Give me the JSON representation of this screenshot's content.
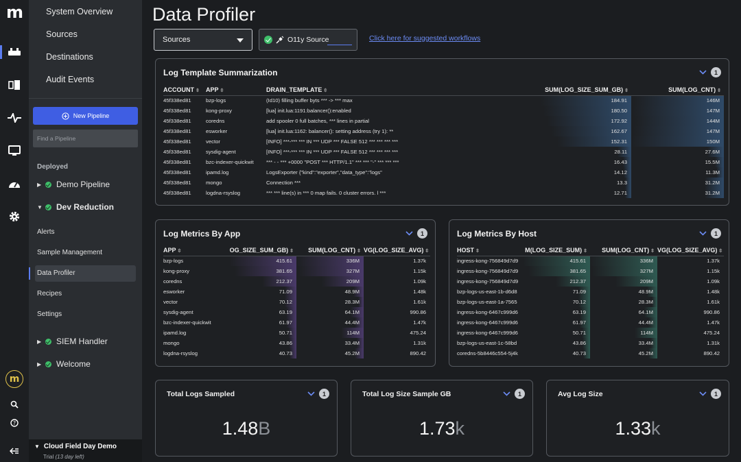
{
  "nav": {
    "top_items": [
      "System Overview",
      "Sources",
      "Destinations",
      "Audit Events"
    ],
    "new_pipeline": "New Pipeline",
    "find_placeholder": "Find a Pipeline",
    "deployed_label": "Deployed",
    "pipelines": [
      {
        "name": "Demo Pipeline",
        "expanded": false
      },
      {
        "name": "Dev Reduction",
        "expanded": true
      },
      {
        "name": "SIEM Handler",
        "expanded": false
      },
      {
        "name": "Welcome",
        "expanded": false
      }
    ],
    "sub_items": [
      "Alerts",
      "Sample Management",
      "Data Profiler",
      "Recipes",
      "Settings"
    ],
    "active_sub": "Data Profiler",
    "org_name": "Cloud Field Day Demo",
    "trial_prefix": "Trial",
    "trial_days": "(13 day left)"
  },
  "main": {
    "title": "Data Profiler",
    "select_value": "Sources",
    "source_chip": "O11y Source",
    "workflow_link": "Click here for suggested workflows"
  },
  "log_template": {
    "title": "Log Template Summarization",
    "badge": "1",
    "columns": [
      "ACCOUNT",
      "APP",
      "DRAIN_TEMPLATE",
      "SUM(LOG_SIZE_SUM_GB)",
      "SUM(LOG_CNT)"
    ],
    "rows": [
      {
        "account": "45f338ed81",
        "app": "bzp-logs",
        "template": "(Id10) filling buffer byts *** -> *** max",
        "size": "184.91",
        "cnt": "146M",
        "size_frac": 1.0,
        "cnt_frac": 0.97
      },
      {
        "account": "45f338ed81",
        "app": "kong-proxy",
        "template": "[lua] init.lua:1191:balancer():enabled",
        "size": "180.50",
        "cnt": "147M",
        "size_frac": 0.97,
        "cnt_frac": 0.98
      },
      {
        "account": "45f338ed81",
        "app": "coredns",
        "template": "add spooler 0 full batches, *** lines in partial",
        "size": "172.92",
        "cnt": "144M",
        "size_frac": 0.93,
        "cnt_frac": 0.96
      },
      {
        "account": "45f338ed81",
        "app": "esworker",
        "template": "[lua] init.lua:1162: balancer(): setting address (try 1): **",
        "size": "162.67",
        "cnt": "147M",
        "size_frac": 0.88,
        "cnt_frac": 0.98
      },
      {
        "account": "45f338ed81",
        "app": "vector",
        "template": "[INFO] ***-*** *** IN *** UDP *** FALSE 512 *** *** *** ***",
        "size": "152.31",
        "cnt": "150M",
        "size_frac": 0.82,
        "cnt_frac": 1.0
      },
      {
        "account": "45f338ed81",
        "app": "sysdig-agent",
        "template": "[INFO] ***-*** *** IN *** UDP *** FALSE 512 *** *** *** ***",
        "size": "28.11",
        "cnt": "27.6M",
        "size_frac": 0.15,
        "cnt_frac": 0.18
      },
      {
        "account": "45f338ed81",
        "app": "bzc-indexer-quickwit",
        "template": "*** - - *** +0000 \"POST *** HTTP/1.1\" *** *** \"-\" *** *** ***",
        "size": "16.43",
        "cnt": "15.5M",
        "size_frac": 0.09,
        "cnt_frac": 0.1
      },
      {
        "account": "45f338ed81",
        "app": "ipamd.log",
        "template": "LogsExporter {\"kind\":\"exporter\",\"data_type\":\"logs\"",
        "size": "14.12",
        "cnt": "11.3M",
        "size_frac": 0.08,
        "cnt_frac": 0.08
      },
      {
        "account": "45f338ed81",
        "app": "mongo",
        "template": "Connection ***",
        "size": "13.3",
        "cnt": "31.2M",
        "size_frac": 0.07,
        "cnt_frac": 0.21
      },
      {
        "account": "45f338ed81",
        "app": "logdna-rsyslog",
        "template": "*** *** line(s) in *** 0 map fails. 0 cluster errors. l ***",
        "size": "12.71",
        "cnt": "31.2M",
        "size_frac": 0.07,
        "cnt_frac": 0.21
      }
    ]
  },
  "metrics_app": {
    "title": "Log Metrics By App",
    "badge": "1",
    "columns": [
      "APP",
      "OG_SIZE_SUM_GB)",
      "SUM(LOG_CNT)",
      "VG(LOG_SIZE_AVG)"
    ],
    "rows": [
      {
        "name": "bzp-logs",
        "size": "415.61",
        "cnt": "336M",
        "avg": "1.37k",
        "size_frac": 1.0,
        "cnt_frac": 1.0
      },
      {
        "name": "kong-proxy",
        "size": "381.65",
        "cnt": "327M",
        "avg": "1.15k",
        "size_frac": 0.92,
        "cnt_frac": 0.97
      },
      {
        "name": "coredns",
        "size": "212.37",
        "cnt": "209M",
        "avg": "1.09k",
        "size_frac": 0.51,
        "cnt_frac": 0.62
      },
      {
        "name": "esworker",
        "size": "71.09",
        "cnt": "48.9M",
        "avg": "1.48k",
        "size_frac": 0.17,
        "cnt_frac": 0.15
      },
      {
        "name": "vector",
        "size": "70.12",
        "cnt": "28.3M",
        "avg": "1.61k",
        "size_frac": 0.17,
        "cnt_frac": 0.08
      },
      {
        "name": "sysdig-agent",
        "size": "63.19",
        "cnt": "64.1M",
        "avg": "990.86",
        "size_frac": 0.15,
        "cnt_frac": 0.19
      },
      {
        "name": "bzc-indexer-quickwit",
        "size": "61.97",
        "cnt": "44.4M",
        "avg": "1.47k",
        "size_frac": 0.15,
        "cnt_frac": 0.13
      },
      {
        "name": "ipamd.log",
        "size": "50.71",
        "cnt": "114M",
        "avg": "475.24",
        "size_frac": 0.12,
        "cnt_frac": 0.34
      },
      {
        "name": "mongo",
        "size": "43.86",
        "cnt": "33.4M",
        "avg": "1.31k",
        "size_frac": 0.11,
        "cnt_frac": 0.1
      },
      {
        "name": "logdna-rsyslog",
        "size": "40.73",
        "cnt": "45.2M",
        "avg": "890.42",
        "size_frac": 0.1,
        "cnt_frac": 0.13
      }
    ]
  },
  "metrics_host": {
    "title": "Log Metrics By Host",
    "badge": "1",
    "columns": [
      "HOST",
      "M(LOG_SIZE_SUM)",
      "SUM(LOG_CNT)",
      "VG(LOG_SIZE_AVG)"
    ],
    "rows": [
      {
        "name": "ingress-kong-756849d7d9",
        "size": "415.61",
        "cnt": "336M",
        "avg": "1.37k",
        "size_frac": 1.0,
        "cnt_frac": 1.0
      },
      {
        "name": "ingress-kong-756849d7d9",
        "size": "381.65",
        "cnt": "327M",
        "avg": "1.15k",
        "size_frac": 0.92,
        "cnt_frac": 0.97
      },
      {
        "name": "ingress-kong-756849d7d9",
        "size": "212.37",
        "cnt": "209M",
        "avg": "1.09k",
        "size_frac": 0.51,
        "cnt_frac": 0.62
      },
      {
        "name": "bzp-logs-us-east-1b-d6d8",
        "size": "71.09",
        "cnt": "48.9M",
        "avg": "1.48k",
        "size_frac": 0.17,
        "cnt_frac": 0.15
      },
      {
        "name": "bzp-logs-us-east-1a-7565",
        "size": "70.12",
        "cnt": "28.3M",
        "avg": "1.61k",
        "size_frac": 0.17,
        "cnt_frac": 0.08
      },
      {
        "name": "ingress-kong-6467c999d6",
        "size": "63.19",
        "cnt": "64.1M",
        "avg": "990.86",
        "size_frac": 0.15,
        "cnt_frac": 0.19
      },
      {
        "name": "ingress-kong-6467c999d6",
        "size": "61.97",
        "cnt": "44.4M",
        "avg": "1.47k",
        "size_frac": 0.15,
        "cnt_frac": 0.13
      },
      {
        "name": "ingress-kong-6467c999d6",
        "size": "50.71",
        "cnt": "114M",
        "avg": "475.24",
        "size_frac": 0.12,
        "cnt_frac": 0.34
      },
      {
        "name": "bzp-logs-us-east-1c-58bd",
        "size": "43.86",
        "cnt": "33.4M",
        "avg": "1.31k",
        "size_frac": 0.11,
        "cnt_frac": 0.1
      },
      {
        "name": "coredns-5b8446c554-5j4k",
        "size": "40.73",
        "cnt": "45.2M",
        "avg": "890.42",
        "size_frac": 0.1,
        "cnt_frac": 0.13
      }
    ]
  },
  "kpis": [
    {
      "label": "Total Logs Sampled",
      "value": "1.48",
      "unit": "B",
      "badge": "1"
    },
    {
      "label": "Total Log Size Sample GB",
      "value": "1.73",
      "unit": "k",
      "badge": "1"
    },
    {
      "label": "Avg Log Size",
      "value": "1.33",
      "unit": "k",
      "badge": "1"
    }
  ],
  "colors": {
    "accent": "#3f5ee3",
    "link": "#6c8cf5",
    "status_ok": "#3fbf6a",
    "bar_template": "#2f4a68",
    "bar_app": "#4a3a6a",
    "bar_host": "#2f5a52"
  },
  "icons": [
    "logo-m",
    "pipeline-icon",
    "sources-icon",
    "pulse-icon",
    "monitor-icon",
    "dashboard-icon",
    "settings-gear-icon",
    "user-logo-icon",
    "search-icon",
    "help-icon",
    "collapse-icon"
  ]
}
